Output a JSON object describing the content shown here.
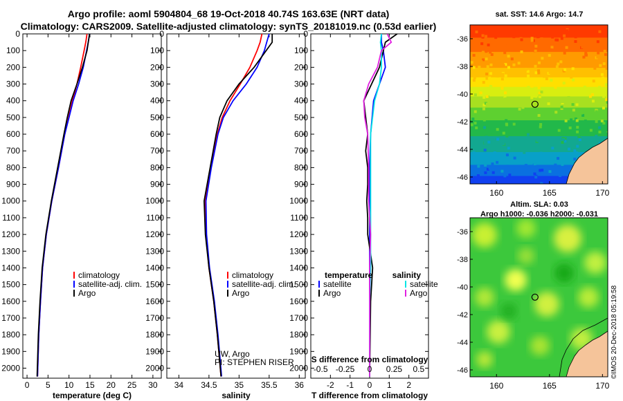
{
  "title_line1": "Argo profile: aoml 5904804_68 19-Oct-2018 40.74S 163.63E (NRT data)",
  "title_line2": "Climatology: CARS2009. Satellite-adjusted climatology: synTS_20181019.nc (0.53d earlier)",
  "sst_title": "sat. SST: 14.6 Argo: 14.7",
  "sla_title1": "Altim. SLA: 0.03",
  "sla_title2": "Argo h1000: -0.036 h2000: -0.031",
  "footer_stamp": "©IMOS 20-Dec-2018 05:19:58",
  "colors": {
    "climatology": "#ff0000",
    "satellite": "#0000ff",
    "argo": "#000000",
    "sat_salinity": "#00e5e5",
    "argo_salinity": "#e020e0"
  },
  "depth_ticks": [
    "0",
    "100",
    "200",
    "300",
    "400",
    "500",
    "600",
    "700",
    "800",
    "900",
    "1000",
    "1100",
    "1200",
    "1300",
    "1400",
    "1500",
    "1600",
    "1700",
    "1800",
    "1900",
    "2000"
  ],
  "temp_panel": {
    "xlabel": "temperature (deg C)",
    "xticks": [
      "0",
      "5",
      "10",
      "15",
      "20",
      "25",
      "30"
    ],
    "legend": [
      "climatology",
      "satellite-adj. clim.",
      "Argo"
    ]
  },
  "sal_panel": {
    "xlabel": "salinity",
    "xticks": [
      "34",
      "34.5",
      "35",
      "35.5",
      "36"
    ],
    "legend": [
      "climatology",
      "satellite-adj. clim.",
      "Argo"
    ],
    "note1": "UW, Argo",
    "note2": "PI: STEPHEN RISER"
  },
  "diff_panel": {
    "xlabel": "T difference from climatology",
    "xticks": [
      "-2",
      "-1",
      "0",
      "1",
      "2"
    ],
    "top_label": "S difference from climatology",
    "top_ticks": [
      "-0.5",
      "-0.25",
      "0",
      "0.25",
      "0.5"
    ],
    "legend_t_head": "temperature",
    "legend_s_head": "salinity",
    "legend_t": [
      "satellite",
      "Argo"
    ],
    "legend_s": [
      "satellite",
      "Argo"
    ]
  },
  "map_sst": {
    "yticks": [
      "-36",
      "-38",
      "-40",
      "-42",
      "-44",
      "-46"
    ],
    "xticks": [
      "160",
      "165",
      "170"
    ]
  },
  "map_sla": {
    "yticks": [
      "-36",
      "-38",
      "-40",
      "-42",
      "-44",
      "-46"
    ],
    "xticks": [
      "160",
      "165",
      "170"
    ]
  },
  "chart_data": [
    {
      "type": "line",
      "title": "",
      "xlabel": "temperature (deg C)",
      "ylabel": "depth",
      "xlim": [
        -1,
        32
      ],
      "ylim": [
        2060,
        0
      ],
      "series": [
        {
          "name": "climatology",
          "depth": [
            0,
            50,
            100,
            200,
            300,
            400,
            500,
            600,
            800,
            1000,
            1200,
            1400,
            1600,
            1800,
            2050
          ],
          "values": [
            14.3,
            14.0,
            13.6,
            12.8,
            11.9,
            10.8,
            9.9,
            9.0,
            7.5,
            5.9,
            4.6,
            3.7,
            3.2,
            2.8,
            2.5
          ]
        },
        {
          "name": "satellite-adj. clim.",
          "depth": [
            0,
            50,
            100,
            200,
            300,
            400,
            500,
            600,
            800,
            1000,
            1200,
            1400,
            1600,
            1800,
            2050
          ],
          "values": [
            14.9,
            14.6,
            14.2,
            13.4,
            12.3,
            11.0,
            10.0,
            9.0,
            7.5,
            5.9,
            4.6,
            3.7,
            3.2,
            2.8,
            2.5
          ]
        },
        {
          "name": "Argo",
          "depth": [
            0,
            50,
            100,
            200,
            300,
            400,
            500,
            600,
            800,
            1000,
            1200,
            1400,
            1600,
            1800,
            2050
          ],
          "values": [
            14.9,
            14.6,
            14.3,
            13.2,
            11.9,
            10.5,
            9.6,
            8.8,
            7.3,
            5.8,
            4.5,
            3.6,
            3.1,
            2.7,
            2.4
          ]
        }
      ]
    },
    {
      "type": "line",
      "xlabel": "salinity",
      "ylabel": "depth",
      "xlim": [
        33.8,
        36.1
      ],
      "ylim": [
        2060,
        0
      ],
      "series": [
        {
          "name": "climatology",
          "depth": [
            0,
            50,
            100,
            200,
            300,
            400,
            500,
            600,
            800,
            1000,
            1200,
            1400,
            1600,
            1800,
            2050
          ],
          "values": [
            35.38,
            35.35,
            35.3,
            35.18,
            35.02,
            34.85,
            34.72,
            34.64,
            34.53,
            34.44,
            34.45,
            34.5,
            34.58,
            34.64,
            34.7
          ]
        },
        {
          "name": "satellite-adj. clim.",
          "depth": [
            0,
            50,
            100,
            200,
            300,
            400,
            500,
            600,
            800,
            1000,
            1200,
            1400,
            1600,
            1800,
            2050
          ],
          "values": [
            35.5,
            35.46,
            35.42,
            35.3,
            35.12,
            34.9,
            34.74,
            34.65,
            34.54,
            34.45,
            34.46,
            34.51,
            34.59,
            34.65,
            34.71
          ]
        },
        {
          "name": "Argo",
          "depth": [
            0,
            50,
            100,
            200,
            300,
            400,
            500,
            600,
            800,
            1000,
            1200,
            1400,
            1600,
            1800,
            2050
          ],
          "values": [
            35.55,
            35.55,
            35.45,
            35.25,
            35.0,
            34.8,
            34.68,
            34.62,
            34.52,
            34.42,
            34.44,
            34.5,
            34.58,
            34.64,
            34.7
          ]
        }
      ]
    },
    {
      "type": "line",
      "xlabel": "T difference from climatology",
      "ylabel": "depth",
      "xlim": [
        -3,
        3
      ],
      "ylim": [
        2060,
        0
      ],
      "series": [
        {
          "name": "satellite T",
          "depth": [
            0,
            50,
            100,
            200,
            300,
            400,
            600,
            800,
            1000,
            1200,
            1400,
            1600,
            2050
          ],
          "values": [
            0.6,
            0.6,
            0.7,
            0.8,
            0.5,
            0.2,
            0.05,
            0,
            0,
            0,
            0,
            0,
            0
          ]
        },
        {
          "name": "Argo T",
          "depth": [
            0,
            50,
            100,
            200,
            300,
            400,
            500,
            600,
            700,
            800,
            900,
            1000,
            1100,
            1200,
            1400,
            1600,
            2050
          ],
          "values": [
            1.4,
            0.8,
            0.7,
            0.5,
            0.1,
            -0.3,
            -0.2,
            -0.1,
            -0.2,
            -0.1,
            -0.1,
            -0.15,
            -0.1,
            -0.1,
            0.15,
            0.05,
            0
          ]
        },
        {
          "name": "satellite S",
          "depth": [
            0,
            50,
            100,
            200,
            300,
            400,
            600,
            800,
            1000,
            1200,
            1400,
            1600,
            2050
          ],
          "values": [
            0.12,
            0.11,
            0.12,
            0.12,
            0.1,
            0.05,
            0.01,
            0.01,
            0.01,
            0.01,
            0.01,
            0,
            0
          ]
        },
        {
          "name": "Argo S",
          "depth": [
            0,
            50,
            100,
            200,
            300,
            400,
            500,
            600,
            800,
            1000,
            1200,
            1400,
            1600,
            2050
          ],
          "values": [
            0.18,
            0.22,
            0.12,
            0.08,
            -0.01,
            -0.06,
            -0.05,
            -0.02,
            -0.01,
            -0.01,
            0.01,
            0,
            0,
            0
          ]
        }
      ]
    }
  ]
}
